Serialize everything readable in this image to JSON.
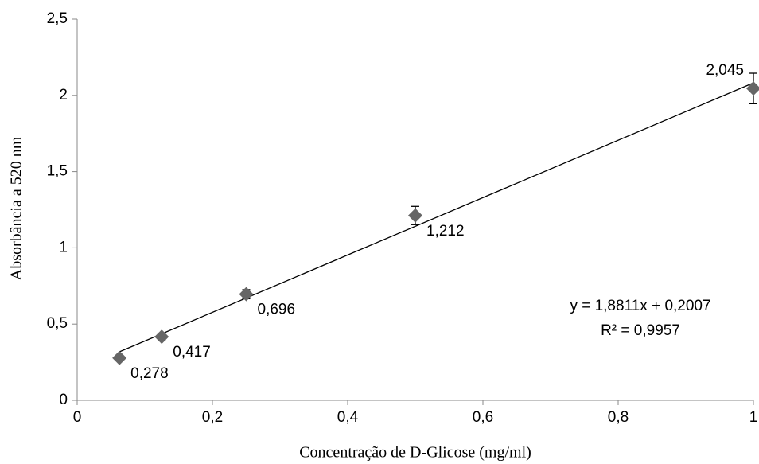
{
  "chart_data": {
    "type": "scatter",
    "x_label": "Concentração de D-Glicose (mg/ml)",
    "y_label": "Absorbância a 520 nm",
    "x": [
      0.0625,
      0.125,
      0.25,
      0.5,
      1
    ],
    "values": [
      0.278,
      0.417,
      0.696,
      1.212,
      2.045
    ],
    "value_labels": [
      "0,278",
      "0,417",
      "0,696",
      "1,212",
      "2,045"
    ],
    "errors": [
      0.01,
      0.02,
      0.03,
      0.06,
      0.1
    ],
    "color": "#666666",
    "xlim": [
      0,
      1
    ],
    "xticks": [
      0,
      {
        "value": 0.2,
        "label": "0,2"
      },
      {
        "value": 0.4,
        "label": "0,4"
      },
      {
        "value": 0.6,
        "label": "0,6"
      },
      {
        "value": 0.8,
        "label": "0,8"
      },
      1
    ],
    "ylim": [
      0,
      2.5
    ],
    "yticks": [
      0,
      {
        "value": 0.5,
        "label": "0,5"
      },
      1,
      {
        "value": 1.5,
        "label": "1,5"
      },
      2,
      {
        "value": 2.5,
        "label": "2,5"
      }
    ],
    "grid": false,
    "trendline": {
      "slope": 1.8811,
      "intercept": 0.2007,
      "equation": "y = 1,8811x + 0,2007",
      "r_squared": 0.9957,
      "r_squared_label": "R² = 0,9957"
    }
  }
}
